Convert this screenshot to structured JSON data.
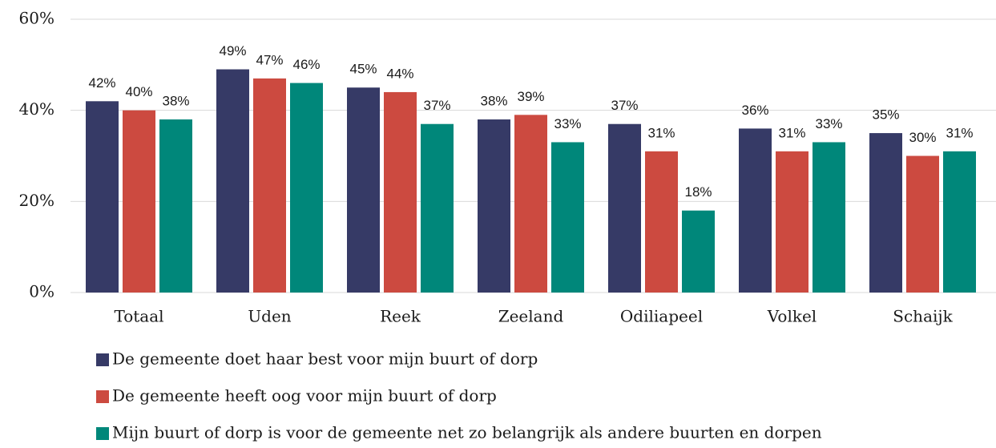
{
  "chart_data": {
    "type": "bar",
    "categories": [
      "Totaal",
      "Uden",
      "Reek",
      "Zeeland",
      "Odiliapeel",
      "Volkel",
      "Schaijk"
    ],
    "series": [
      {
        "name": "De gemeente doet haar best voor mijn buurt of dorp",
        "color": "#363a66",
        "values": [
          42,
          49,
          45,
          38,
          37,
          36,
          35
        ],
        "value_labels": [
          "42%",
          "49%",
          "45%",
          "38%",
          "37%",
          "36%",
          "35%"
        ]
      },
      {
        "name": "De gemeente heeft oog voor mijn buurt of dorp",
        "color": "#cc4a40",
        "values": [
          40,
          47,
          44,
          39,
          31,
          31,
          30
        ],
        "value_labels": [
          "40%",
          "47%",
          "44%",
          "39%",
          "31%",
          "31%",
          "30%"
        ]
      },
      {
        "name": "Mijn buurt of dorp is voor de gemeente net zo belangrijk als andere buurten en dorpen",
        "color": "#00877a",
        "values": [
          38,
          46,
          37,
          33,
          18,
          33,
          31
        ],
        "value_labels": [
          "38%",
          "46%",
          "37%",
          "33%",
          "18%",
          "33%",
          "31%"
        ]
      }
    ],
    "ylim": [
      0,
      60
    ],
    "yticks": [
      {
        "value": 0,
        "label": "0%"
      },
      {
        "value": 20,
        "label": "20%"
      },
      {
        "value": 40,
        "label": "40%"
      },
      {
        "value": 60,
        "label": "60%"
      }
    ],
    "grid": true,
    "legend": "bottom"
  }
}
